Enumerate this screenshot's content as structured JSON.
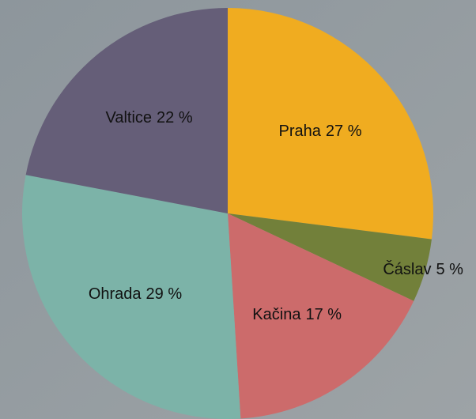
{
  "chart_data": {
    "type": "pie",
    "categories": [
      "Praha",
      "Čáslav",
      "Kačina",
      "Ohrada",
      "Valtice"
    ],
    "values": [
      27,
      5,
      17,
      29,
      22
    ],
    "value_labels": [
      "27 %",
      "5 %",
      "17 %",
      "29 %",
      "22 %"
    ],
    "colors": [
      "#f0ac20",
      "#72803a",
      "#cc6b6b",
      "#7cb3a8",
      "#655e78"
    ]
  }
}
